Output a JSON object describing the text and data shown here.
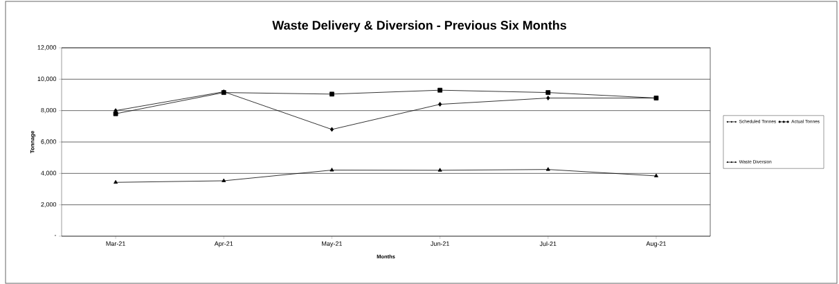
{
  "chart_data": {
    "type": "line",
    "title": "Waste Delivery & Diversion - Previous Six Months",
    "xlabel": "Months",
    "ylabel": "Tonnage",
    "categories": [
      "Mar-21",
      "Apr-21",
      "May-21",
      "Jun-21",
      "Jul-21",
      "Aug-21"
    ],
    "series": [
      {
        "name": "Scheduled Tonnes",
        "color": "#000000",
        "marker": "diamond",
        "values": [
          8000,
          9200,
          6800,
          8400,
          8800,
          8800
        ]
      },
      {
        "name": "Actual Tonnes",
        "color": "#000000",
        "marker": "square",
        "values": [
          7800,
          9150,
          9050,
          9300,
          9150,
          8800
        ]
      },
      {
        "name": "Waste Diversion",
        "color": "#000000",
        "marker": "triangle",
        "values": [
          3430,
          3530,
          4210,
          4200,
          4250,
          3840
        ]
      }
    ],
    "ylim": [
      0,
      12000
    ],
    "yticks": [
      {
        "value": 0,
        "label": "-"
      },
      {
        "value": 2000,
        "label": "2,000"
      },
      {
        "value": 4000,
        "label": "4,000"
      },
      {
        "value": 6000,
        "label": "6,000"
      },
      {
        "value": 8000,
        "label": "8,000"
      },
      {
        "value": 10000,
        "label": "10,000"
      },
      {
        "value": 12000,
        "label": "12,000"
      }
    ],
    "grid": "y",
    "legend": "right",
    "line_style": "solid"
  }
}
